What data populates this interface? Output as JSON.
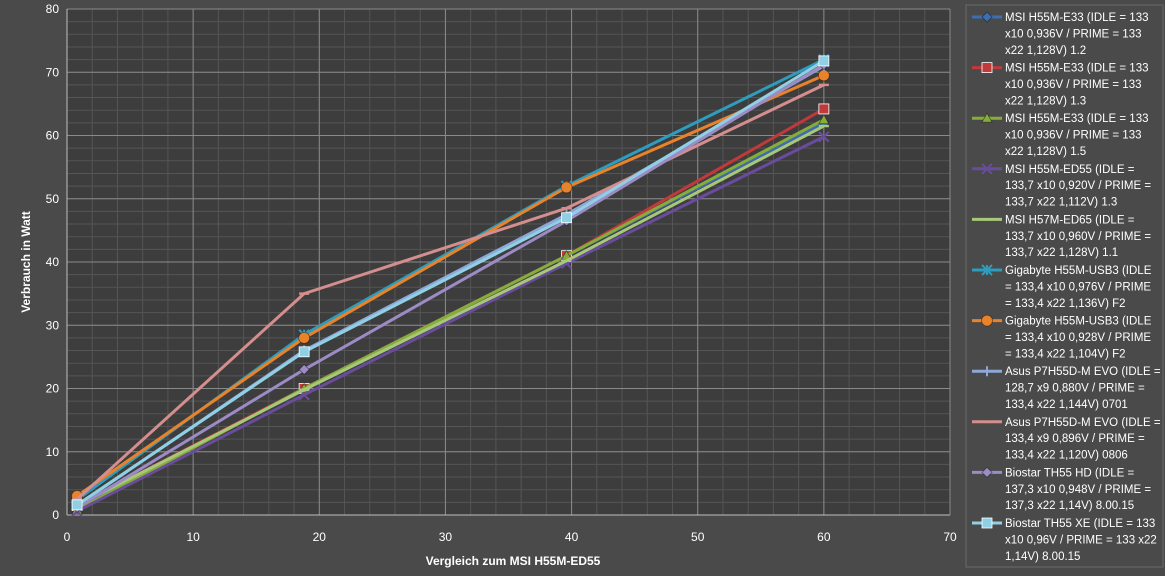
{
  "chart_data": {
    "type": "line",
    "title": "",
    "xlabel": "Vergleich zum MSI H55M-ED55",
    "ylabel": "Verbrauch in Watt",
    "xlim": [
      0,
      70
    ],
    "ylim": [
      0,
      80
    ],
    "x_ticks": [
      0,
      10,
      20,
      30,
      40,
      50,
      60,
      70
    ],
    "y_ticks": [
      0,
      10,
      20,
      30,
      40,
      50,
      60,
      70,
      80
    ],
    "grid": "major and minor",
    "legend_position": "right",
    "series": [
      {
        "name": "MSI H55M-E33 (IDLE = 133 x10 0,936V / PRIME = 133 x22 1,128V) 1.2",
        "color": "#3e6db0",
        "marker": "diamond",
        "points": [
          [
            0.8,
            1
          ],
          [
            18.8,
            20
          ],
          [
            39.6,
            41
          ],
          [
            60,
            62
          ]
        ]
      },
      {
        "name": "MSI H55M-E33 (IDLE = 133 x10 0,936V / PRIME = 133 x22 1,128V) 1.3",
        "color": "#c0393b",
        "marker": "square",
        "points": [
          [
            0.8,
            1.5
          ],
          [
            18.8,
            20
          ],
          [
            39.6,
            41
          ],
          [
            60,
            64.2
          ]
        ]
      },
      {
        "name": "MSI H55M-E33 (IDLE = 133 x10 0,936V / PRIME = 133 x22 1,128V) 1.5",
        "color": "#86ad3a",
        "marker": "triangle",
        "points": [
          [
            0.8,
            0.8
          ],
          [
            18.8,
            20
          ],
          [
            39.6,
            41
          ],
          [
            60,
            62.5
          ]
        ]
      },
      {
        "name": "MSI H55M-ED55 (IDLE = 133,7 x10 0,920V / PRIME = 133,7 x22 1,112V) 1.3",
        "color": "#6a4c9c",
        "marker": "x",
        "points": [
          [
            0.8,
            0.6
          ],
          [
            18.8,
            19
          ],
          [
            39.6,
            39.8
          ],
          [
            60,
            59.8
          ]
        ]
      },
      {
        "name": "MSI H57M-ED65 (IDLE = 133,7 x10 0,960V / PRIME = 133,7 x22 1,128V) 1.1",
        "color": "#a7c87a",
        "marker": "dash",
        "points": [
          [
            0.8,
            1.5
          ],
          [
            18.8,
            19.8
          ],
          [
            39.6,
            40.2
          ],
          [
            60,
            61.5
          ]
        ]
      },
      {
        "name": "Gigabyte H55M-USB3 (IDLE = 133,4 x10 0,976V / PRIME = 133,4 x22 1,136V) F2",
        "color": "#2e9cbc",
        "marker": "star",
        "points": [
          [
            0.8,
            2.4
          ],
          [
            18.8,
            28.5
          ],
          [
            39.6,
            52
          ],
          [
            60,
            72
          ]
        ]
      },
      {
        "name": "Gigabyte H55M-USB3 (IDLE = 133,4 x10 0,928V / PRIME = 133,4 x22 1,104V) F2",
        "color": "#e8822b",
        "marker": "circle",
        "points": [
          [
            0.8,
            3
          ],
          [
            18.8,
            28
          ],
          [
            39.6,
            51.8
          ],
          [
            60,
            69.5
          ]
        ]
      },
      {
        "name": "Asus P7H55D-M EVO (IDLE = 128,7 x9 0,880V / PRIME = 133,4 x22 1,144V) 0701",
        "color": "#8fa7d8",
        "marker": "plus",
        "points": [
          [
            0.8,
            1.5
          ],
          [
            18.8,
            26
          ],
          [
            39.6,
            47.5
          ],
          [
            60,
            71
          ]
        ]
      },
      {
        "name": "Asus P7H55D-M EVO (IDLE = 133,4 x9 0,896V / PRIME = 133,4 x22 1,120V) 0806",
        "color": "#d48e8e",
        "marker": "dash",
        "points": [
          [
            0.8,
            2.5
          ],
          [
            18.8,
            35
          ],
          [
            39.6,
            48.5
          ],
          [
            60,
            68
          ]
        ]
      },
      {
        "name": "Biostar TH55 HD (IDLE = 137,3 x10 0,948V / PRIME = 137,3 x22 1,14V) 8.00.15",
        "color": "#9c8bc4",
        "marker": "diamond",
        "points": [
          [
            0.8,
            1.2
          ],
          [
            18.8,
            23
          ],
          [
            39.6,
            46.5
          ],
          [
            60,
            71.2
          ]
        ]
      },
      {
        "name": "Biostar TH55 XE (IDLE = 133 x10 0,96V / PRIME = 133 x22 1,14V) 8.00.15",
        "color": "#8fd0e4",
        "marker": "square",
        "points": [
          [
            0.8,
            1.6
          ],
          [
            18.8,
            25.8
          ],
          [
            39.6,
            47
          ],
          [
            60,
            71.8
          ]
        ]
      }
    ],
    "legend_lines": [
      [
        "MSI H55M-E33 (IDLE = 133",
        "x10 0,936V / PRIME = 133",
        "x22 1,128V) 1.2"
      ],
      [
        "MSI H55M-E33 (IDLE = 133",
        "x10 0,936V / PRIME = 133",
        "x22 1,128V) 1.3"
      ],
      [
        "MSI H55M-E33 (IDLE = 133",
        "x10 0,936V / PRIME = 133",
        "x22 1,128V) 1.5"
      ],
      [
        "MSI H55M-ED55 (IDLE =",
        "133,7 x10 0,920V / PRIME =",
        "133,7 x22 1,112V) 1.3"
      ],
      [
        "MSI H57M-ED65 (IDLE =",
        "133,7 x10 0,960V / PRIME =",
        "133,7 x22 1,128V) 1.1"
      ],
      [
        "Gigabyte H55M-USB3 (IDLE",
        "= 133,4 x10 0,976V / PRIME",
        "= 133,4 x22 1,136V) F2"
      ],
      [
        "Gigabyte H55M-USB3 (IDLE",
        "= 133,4 x10 0,928V / PRIME",
        "= 133,4 x22 1,104V) F2"
      ],
      [
        "Asus P7H55D-M EVO (IDLE =",
        "128,7 x9 0,880V / PRIME =",
        "133,4 x22 1,144V) 0701"
      ],
      [
        "Asus P7H55D-M EVO (IDLE =",
        "133,4 x9 0,896V / PRIME =",
        "133,4 x22 1,120V) 0806"
      ],
      [
        "Biostar TH55 HD (IDLE =",
        "137,3 x10 0,948V / PRIME =",
        "137,3 x22 1,14V) 8.00.15"
      ],
      [
        "Biostar TH55 XE (IDLE = 133",
        "x10 0,96V / PRIME = 133 x22",
        "1,14V) 8.00.15"
      ]
    ]
  }
}
